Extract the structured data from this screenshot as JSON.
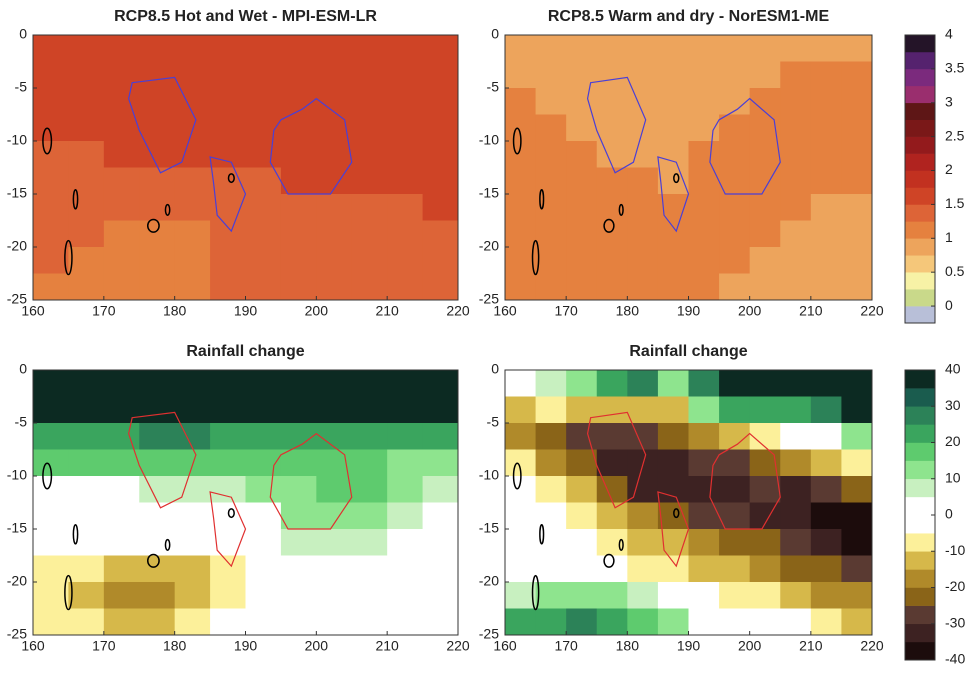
{
  "chart_data": [
    {
      "type": "heatmap",
      "title": "RCP8.5 Hot and Wet - MPI-ESM-LR",
      "xlim": [
        160,
        220
      ],
      "ylim": [
        -25,
        0
      ],
      "xticks": [
        160,
        170,
        180,
        190,
        200,
        210,
        220
      ],
      "yticks": [
        0,
        -5,
        -10,
        -15,
        -20,
        -25
      ],
      "outline_color": "#4a3fd6",
      "values": [
        [
          1.6,
          1.6,
          1.6,
          1.6,
          1.6,
          1.6,
          1.6,
          1.6,
          1.6,
          1.6,
          1.6,
          1.6
        ],
        [
          1.6,
          1.6,
          1.6,
          1.6,
          1.6,
          1.6,
          1.6,
          1.6,
          1.6,
          1.6,
          1.6,
          1.6
        ],
        [
          1.6,
          1.6,
          1.6,
          1.6,
          1.6,
          1.6,
          1.6,
          1.6,
          1.6,
          1.6,
          1.6,
          1.6
        ],
        [
          1.6,
          1.6,
          1.6,
          1.6,
          1.6,
          1.6,
          1.6,
          1.6,
          1.6,
          1.6,
          1.6,
          1.6
        ],
        [
          1.4,
          1.4,
          1.6,
          1.6,
          1.6,
          1.6,
          1.6,
          1.6,
          1.6,
          1.6,
          1.6,
          1.6
        ],
        [
          1.4,
          1.4,
          1.4,
          1.4,
          1.4,
          1.4,
          1.4,
          1.6,
          1.6,
          1.6,
          1.6,
          1.6
        ],
        [
          1.4,
          1.4,
          1.4,
          1.4,
          1.4,
          1.4,
          1.4,
          1.4,
          1.4,
          1.4,
          1.4,
          1.6
        ],
        [
          1.4,
          1.4,
          1.2,
          1.2,
          1.2,
          1.4,
          1.4,
          1.4,
          1.4,
          1.4,
          1.4,
          1.4
        ],
        [
          1.4,
          1.2,
          1.2,
          1.2,
          1.2,
          1.4,
          1.4,
          1.4,
          1.4,
          1.4,
          1.4,
          1.4
        ],
        [
          1.2,
          1.2,
          1.2,
          1.2,
          1.2,
          1.4,
          1.4,
          1.4,
          1.4,
          1.4,
          1.4,
          1.4
        ]
      ]
    },
    {
      "type": "heatmap",
      "title": "RCP8.5 Warm and dry - NorESM1-ME",
      "xlim": [
        160,
        220
      ],
      "ylim": [
        -25,
        0
      ],
      "xticks": [
        160,
        170,
        180,
        190,
        200,
        210,
        220
      ],
      "yticks": [
        0,
        -5,
        -10,
        -15,
        -20,
        -25
      ],
      "outline_color": "#4a3fd6",
      "values": [
        [
          0.9,
          0.9,
          0.9,
          0.9,
          0.9,
          0.9,
          0.9,
          0.9,
          0.9,
          0.9,
          0.9,
          0.9
        ],
        [
          0.9,
          0.9,
          0.9,
          0.9,
          0.9,
          0.9,
          0.9,
          0.9,
          0.9,
          1.1,
          1.1,
          1.1
        ],
        [
          1.1,
          0.9,
          0.9,
          0.9,
          0.9,
          0.9,
          0.9,
          0.9,
          1.1,
          1.1,
          1.1,
          1.1
        ],
        [
          1.1,
          1.1,
          0.9,
          0.9,
          0.9,
          0.9,
          0.9,
          1.1,
          1.1,
          1.1,
          1.1,
          1.1
        ],
        [
          1.1,
          1.1,
          1.1,
          0.9,
          0.9,
          0.9,
          1.1,
          1.1,
          1.1,
          1.1,
          1.1,
          1.1
        ],
        [
          1.1,
          1.1,
          1.1,
          1.1,
          1.1,
          0.9,
          1.1,
          1.1,
          1.1,
          1.1,
          1.1,
          1.1
        ],
        [
          1.1,
          1.1,
          1.1,
          1.1,
          1.1,
          1.1,
          1.1,
          1.1,
          1.1,
          1.1,
          0.9,
          0.9
        ],
        [
          1.1,
          1.1,
          1.1,
          1.1,
          1.1,
          1.1,
          1.1,
          1.1,
          1.1,
          0.9,
          0.9,
          0.9
        ],
        [
          1.1,
          1.1,
          1.1,
          1.1,
          1.1,
          1.1,
          1.1,
          1.1,
          0.9,
          0.9,
          0.9,
          0.9
        ],
        [
          1.1,
          1.1,
          1.1,
          1.1,
          1.1,
          1.1,
          1.1,
          0.9,
          0.9,
          0.9,
          0.9,
          0.9
        ]
      ]
    },
    {
      "type": "heatmap",
      "title": "Rainfall change",
      "xlim": [
        160,
        220
      ],
      "ylim": [
        -25,
        0
      ],
      "xticks": [
        160,
        170,
        180,
        190,
        200,
        210,
        220
      ],
      "yticks": [
        0,
        -5,
        -10,
        -15,
        -20,
        -25
      ],
      "outline_color": "#e03030",
      "values": [
        [
          38,
          38,
          38,
          38,
          38,
          38,
          38,
          38,
          38,
          38,
          38,
          38
        ],
        [
          38,
          38,
          38,
          38,
          38,
          38,
          38,
          38,
          38,
          38,
          38,
          38
        ],
        [
          22,
          22,
          22,
          28,
          28,
          22,
          22,
          22,
          22,
          22,
          22,
          22
        ],
        [
          17,
          17,
          17,
          17,
          17,
          17,
          17,
          17,
          17,
          17,
          12,
          12
        ],
        [
          2,
          2,
          2,
          7,
          7,
          7,
          12,
          12,
          18,
          18,
          12,
          7
        ],
        [
          2,
          2,
          2,
          2,
          2,
          2,
          2,
          12,
          12,
          12,
          7,
          2
        ],
        [
          2,
          2,
          2,
          2,
          2,
          2,
          2,
          7,
          7,
          7,
          2,
          2
        ],
        [
          -7,
          -7,
          -12,
          -12,
          -12,
          -7,
          2,
          2,
          2,
          2,
          2,
          2
        ],
        [
          -7,
          -12,
          -17,
          -17,
          -12,
          -7,
          2,
          2,
          2,
          2,
          2,
          2
        ],
        [
          -7,
          -7,
          -12,
          -12,
          -7,
          2,
          2,
          2,
          2,
          2,
          2,
          2
        ]
      ]
    },
    {
      "type": "heatmap",
      "title": "Rainfall change",
      "xlim": [
        160,
        220
      ],
      "ylim": [
        -25,
        0
      ],
      "xticks": [
        160,
        170,
        180,
        190,
        200,
        210,
        220
      ],
      "yticks": [
        0,
        -5,
        -10,
        -15,
        -20,
        -25
      ],
      "outline_color": "#e03030",
      "values": [
        [
          2,
          7,
          12,
          22,
          28,
          12,
          28,
          38,
          38,
          38,
          38,
          38
        ],
        [
          -12,
          -7,
          -12,
          -12,
          -12,
          -12,
          12,
          22,
          22,
          22,
          28,
          38
        ],
        [
          -17,
          -22,
          -27,
          -27,
          -27,
          -22,
          -17,
          -12,
          -7,
          2,
          2,
          12
        ],
        [
          -7,
          -17,
          -22,
          -32,
          -32,
          -32,
          -27,
          -27,
          -22,
          -17,
          -12,
          -7
        ],
        [
          -2,
          -7,
          -12,
          -22,
          -32,
          -32,
          -32,
          -32,
          -27,
          -32,
          -27,
          -22
        ],
        [
          2,
          -2,
          -7,
          -12,
          -17,
          -22,
          -27,
          -27,
          -32,
          -32,
          -37,
          -37
        ],
        [
          2,
          2,
          2,
          -7,
          -12,
          -12,
          -17,
          -22,
          -22,
          -27,
          -32,
          -37
        ],
        [
          2,
          2,
          2,
          -2,
          -7,
          -7,
          -12,
          -12,
          -17,
          -22,
          -22,
          -27
        ],
        [
          7,
          12,
          12,
          12,
          7,
          2,
          -2,
          -7,
          -7,
          -12,
          -17,
          -17
        ],
        [
          22,
          22,
          27,
          22,
          17,
          12,
          2,
          2,
          2,
          -2,
          -7,
          -12
        ]
      ]
    },
    {
      "type": "colorbar",
      "clim": [
        -0.25,
        4
      ],
      "ticks": [
        4,
        3.5,
        3,
        2.5,
        2,
        1.5,
        1,
        0.5,
        0
      ],
      "colors": [
        "#b8bfd8",
        "#c9d98a",
        "#f7f2a6",
        "#f5c77a",
        "#eda45c",
        "#e5813f",
        "#dd6437",
        "#cf4426",
        "#c23120",
        "#b0231f",
        "#931a1c",
        "#7a1818",
        "#5e1616",
        "#9a2e6e",
        "#7b2a7d",
        "#55226e",
        "#241428"
      ]
    },
    {
      "type": "colorbar",
      "clim": [
        -40,
        40
      ],
      "ticks": [
        40,
        30,
        20,
        10,
        0,
        -10,
        -20,
        -30,
        -40
      ],
      "colors": [
        "#1c0c0c",
        "#3d2222",
        "#5a3a32",
        "#8a6418",
        "#b08a2a",
        "#d6b84a",
        "#fcf09a",
        "#ffffff",
        "#ffffff",
        "#c8f0c0",
        "#8ee48e",
        "#5ecb6e",
        "#3aa55e",
        "#2c8258",
        "#1a5c4e",
        "#0c2a22"
      ]
    }
  ]
}
